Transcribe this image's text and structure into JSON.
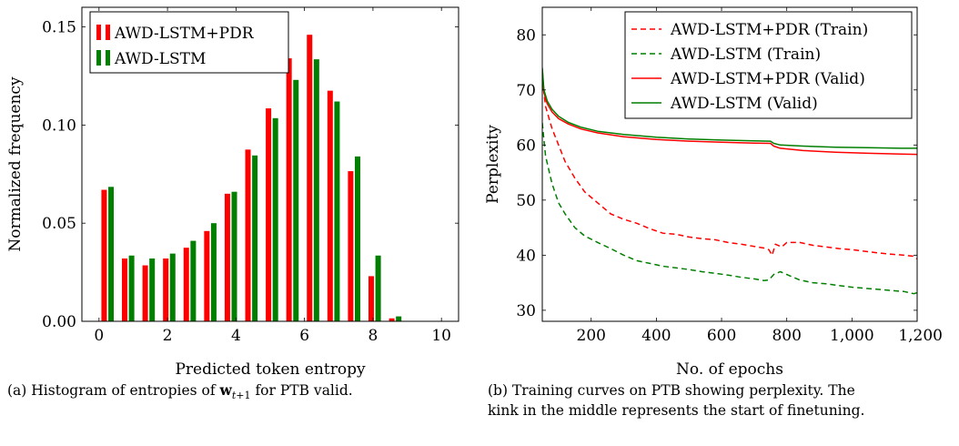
{
  "chart_data": [
    {
      "type": "bar",
      "caption_label": "(a)",
      "caption_text": "Histogram of entropies of w_{t+1} for PTB valid.",
      "xlabel": "Predicted token entropy",
      "ylabel": "Normalized frequency",
      "xlim": [
        -0.5,
        10.5
      ],
      "ylim": [
        0,
        0.16
      ],
      "xticks": [
        0,
        2,
        4,
        6,
        8,
        10
      ],
      "xtick_labels": [
        "0",
        "2",
        "4",
        "6",
        "8",
        "10"
      ],
      "yticks": [
        0,
        0.05,
        0.1,
        0.15
      ],
      "ytick_labels": [
        "0.00",
        "0.05",
        "0.10",
        "0.15"
      ],
      "legend_position": "top-left",
      "bin_centers": [
        0.25,
        0.85,
        1.45,
        2.05,
        2.65,
        3.25,
        3.85,
        4.45,
        5.05,
        5.65,
        6.25,
        6.85,
        7.45,
        8.05,
        8.65,
        9.25,
        9.85
      ],
      "series": [
        {
          "name": "AWD-LSTM+PDR",
          "color": "#ff0000",
          "values": [
            0.067,
            0.032,
            0.0285,
            0.032,
            0.0375,
            0.046,
            0.065,
            0.0875,
            0.1085,
            0.134,
            0.146,
            0.1175,
            0.0765,
            0.023,
            0.0015,
            0,
            0
          ]
        },
        {
          "name": "AWD-LSTM",
          "color": "#007f00",
          "values": [
            0.0685,
            0.0335,
            0.032,
            0.0345,
            0.041,
            0.05,
            0.066,
            0.0845,
            0.1035,
            0.123,
            0.1335,
            0.112,
            0.084,
            0.0335,
            0.0025,
            0,
            0
          ]
        }
      ]
    },
    {
      "type": "line",
      "caption_label": "(b)",
      "caption_line1": "Training curves on PTB showing perplexity.  The",
      "caption_line2": "kink in the middle represents the start of finetuning.",
      "xlabel": "No. of epochs",
      "ylabel": "Perplexity",
      "xlim": [
        50,
        1200
      ],
      "ylim": [
        28,
        85
      ],
      "xticks": [
        200,
        400,
        600,
        800,
        1000,
        1200
      ],
      "xtick_labels": [
        "200",
        "400",
        "600",
        "800",
        "1,000",
        "1,200"
      ],
      "yticks": [
        30,
        40,
        50,
        60,
        70,
        80
      ],
      "ytick_labels": [
        "30",
        "40",
        "50",
        "60",
        "70",
        "80"
      ],
      "legend_position": "top-right",
      "series": [
        {
          "name": "AWD-LSTM+PDR (Train)",
          "color": "#ff0000",
          "dash": "dashed",
          "points": [
            [
              50,
              72
            ],
            [
              60,
              67
            ],
            [
              80,
              63
            ],
            [
              100,
              60
            ],
            [
              120,
              57
            ],
            [
              150,
              54
            ],
            [
              180,
              51.5
            ],
            [
              220,
              49.5
            ],
            [
              260,
              47.5
            ],
            [
              300,
              46.5
            ],
            [
              340,
              45.8
            ],
            [
              380,
              44.8
            ],
            [
              420,
              44
            ],
            [
              460,
              43.8
            ],
            [
              500,
              43.3
            ],
            [
              540,
              43
            ],
            [
              580,
              42.8
            ],
            [
              620,
              42.3
            ],
            [
              660,
              42
            ],
            [
              700,
              41.6
            ],
            [
              730,
              41.3
            ],
            [
              745,
              41
            ],
            [
              755,
              40
            ],
            [
              765,
              42
            ],
            [
              785,
              41.5
            ],
            [
              800,
              42.3
            ],
            [
              840,
              42.3
            ],
            [
              880,
              41.8
            ],
            [
              920,
              41.5
            ],
            [
              960,
              41.2
            ],
            [
              1000,
              41
            ],
            [
              1040,
              40.7
            ],
            [
              1080,
              40.4
            ],
            [
              1120,
              40.2
            ],
            [
              1160,
              40
            ],
            [
              1190,
              39.8
            ],
            [
              1200,
              39.3
            ]
          ]
        },
        {
          "name": "AWD-LSTM (Train)",
          "color": "#007f00",
          "dash": "dashed",
          "points": [
            [
              50,
              64
            ],
            [
              60,
              58
            ],
            [
              80,
              53
            ],
            [
              100,
              49.5
            ],
            [
              120,
              47.5
            ],
            [
              150,
              45
            ],
            [
              180,
              43.5
            ],
            [
              220,
              42.3
            ],
            [
              260,
              41.2
            ],
            [
              300,
              40
            ],
            [
              340,
              39
            ],
            [
              380,
              38.5
            ],
            [
              420,
              38
            ],
            [
              460,
              37.7
            ],
            [
              500,
              37.4
            ],
            [
              540,
              37
            ],
            [
              580,
              36.7
            ],
            [
              620,
              36.4
            ],
            [
              660,
              36
            ],
            [
              700,
              35.7
            ],
            [
              730,
              35.4
            ],
            [
              745,
              35.5
            ],
            [
              760,
              36.5
            ],
            [
              780,
              37
            ],
            [
              800,
              36.5
            ],
            [
              840,
              35.5
            ],
            [
              880,
              35
            ],
            [
              920,
              34.8
            ],
            [
              960,
              34.5
            ],
            [
              1000,
              34.2
            ],
            [
              1040,
              34
            ],
            [
              1080,
              33.8
            ],
            [
              1120,
              33.6
            ],
            [
              1160,
              33.4
            ],
            [
              1190,
              33
            ],
            [
              1200,
              33.2
            ]
          ]
        },
        {
          "name": "AWD-LSTM+PDR (Valid)",
          "color": "#ff0000",
          "dash": "solid",
          "points": [
            [
              50,
              73.5
            ],
            [
              55,
              69.5
            ],
            [
              65,
              67.5
            ],
            [
              80,
              66
            ],
            [
              100,
              64.8
            ],
            [
              130,
              63.8
            ],
            [
              170,
              62.9
            ],
            [
              220,
              62.2
            ],
            [
              300,
              61.5
            ],
            [
              400,
              61
            ],
            [
              500,
              60.7
            ],
            [
              600,
              60.5
            ],
            [
              700,
              60.35
            ],
            [
              750,
              60.3
            ],
            [
              760,
              59.8
            ],
            [
              780,
              59.4
            ],
            [
              850,
              59
            ],
            [
              950,
              58.7
            ],
            [
              1050,
              58.5
            ],
            [
              1150,
              58.35
            ],
            [
              1200,
              58.3
            ]
          ]
        },
        {
          "name": "AWD-LSTM (Valid)",
          "color": "#007f00",
          "dash": "solid",
          "points": [
            [
              50,
              74
            ],
            [
              55,
              70
            ],
            [
              65,
              68
            ],
            [
              80,
              66.5
            ],
            [
              100,
              65.2
            ],
            [
              130,
              64.1
            ],
            [
              170,
              63.2
            ],
            [
              220,
              62.5
            ],
            [
              300,
              61.9
            ],
            [
              400,
              61.4
            ],
            [
              500,
              61.1
            ],
            [
              600,
              60.9
            ],
            [
              700,
              60.75
            ],
            [
              750,
              60.7
            ],
            [
              760,
              60.3
            ],
            [
              780,
              60
            ],
            [
              850,
              59.8
            ],
            [
              950,
              59.6
            ],
            [
              1050,
              59.5
            ],
            [
              1150,
              59.4
            ],
            [
              1200,
              59.4
            ]
          ]
        }
      ]
    }
  ]
}
